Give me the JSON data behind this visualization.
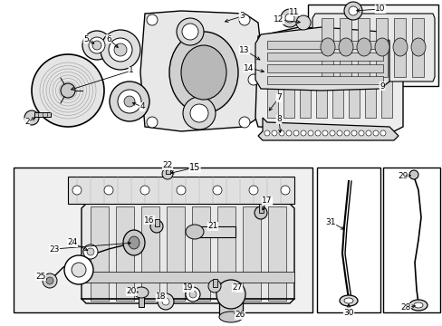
{
  "bg_color": "#ffffff",
  "line_color": "#000000",
  "fig_width": 4.89,
  "fig_height": 3.6,
  "dpi": 100,
  "gray_fill": "#d8d8d8",
  "light_gray": "#eeeeee",
  "mid_gray": "#c8c8c8",
  "dark_gray": "#aaaaaa"
}
